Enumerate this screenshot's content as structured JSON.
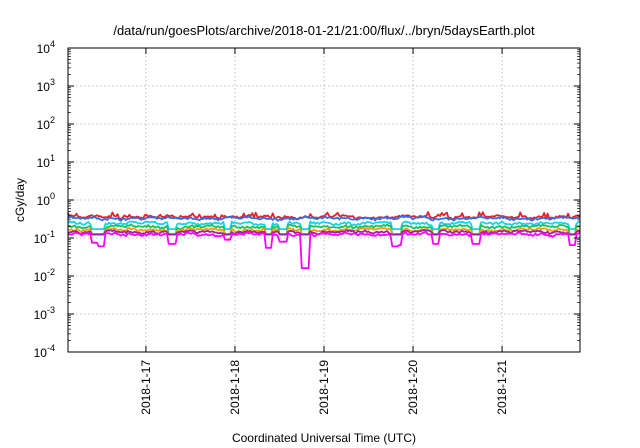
{
  "chart_data": {
    "type": "line",
    "title": "/data/run/goesPlots/archive/2018-01-21/21:00/flux/../bryn/5daysEarth.plot",
    "xlabel": "Coordinated Universal Time (UTC)",
    "ylabel": "cGy/day",
    "yscale": "log",
    "ylim": [
      0.0001,
      10000
    ],
    "xlim": [
      "2018-01-16 03:00",
      "2018-01-21 21:00"
    ],
    "grid": true,
    "y_ticks": [
      {
        "base": "10",
        "exp": "-4",
        "value": 0.0001
      },
      {
        "base": "10",
        "exp": "-3",
        "value": 0.001
      },
      {
        "base": "10",
        "exp": "-2",
        "value": 0.01
      },
      {
        "base": "10",
        "exp": "-1",
        "value": 0.1
      },
      {
        "base": "10",
        "exp": "0",
        "value": 1
      },
      {
        "base": "10",
        "exp": "1",
        "value": 10
      },
      {
        "base": "10",
        "exp": "2",
        "value": 100
      },
      {
        "base": "10",
        "exp": "3",
        "value": 1000
      },
      {
        "base": "10",
        "exp": "4",
        "value": 10000
      }
    ],
    "x_ticks": [
      {
        "label": "2018-1-17",
        "value": "2018-01-17 00:00"
      },
      {
        "label": "2018-1-18",
        "value": "2018-01-18 00:00"
      },
      {
        "label": "2018-1-19",
        "value": "2018-01-19 00:00"
      },
      {
        "label": "2018-1-20",
        "value": "2018-01-20 00:00"
      },
      {
        "label": "2018-1-21",
        "value": "2018-01-21 00:00"
      }
    ],
    "series": [
      {
        "color": "#e8202a",
        "base": 0.36,
        "dip_depth": 0.0
      },
      {
        "color": "#2f6fe8",
        "base": 0.33,
        "dip_depth": 0.0
      },
      {
        "color": "#16d3e6",
        "base": 0.245,
        "dip_depth": 0.1
      },
      {
        "color": "#19c25a",
        "base": 0.2,
        "dip_depth": 0.12
      },
      {
        "color": "#f0a000",
        "base": 0.165,
        "dip_depth": 0.08
      },
      {
        "color": "#a020a8",
        "base": 0.145,
        "dip_depth": 0.05
      },
      {
        "color": "#ff00ff",
        "base": 0.125,
        "dip_depth": 0.25
      }
    ],
    "dips": [
      {
        "t": "2018-01-16 10:00",
        "value": 0.075
      },
      {
        "t": "2018-01-16 12:00",
        "value": 0.06
      },
      {
        "t": "2018-01-17 07:00",
        "value": 0.07
      },
      {
        "t": "2018-01-17 22:00",
        "value": 0.09
      },
      {
        "t": "2018-01-18 09:00",
        "value": 0.055
      },
      {
        "t": "2018-01-18 13:00",
        "value": 0.08
      },
      {
        "t": "2018-01-18 19:00",
        "value": 0.016
      },
      {
        "t": "2018-01-19 19:00",
        "value": 0.06
      },
      {
        "t": "2018-01-19 20:00",
        "value": 0.065
      },
      {
        "t": "2018-01-20 06:00",
        "value": 0.07
      },
      {
        "t": "2018-01-20 17:00",
        "value": 0.07
      },
      {
        "t": "2018-01-21 19:00",
        "value": 0.065
      }
    ]
  }
}
